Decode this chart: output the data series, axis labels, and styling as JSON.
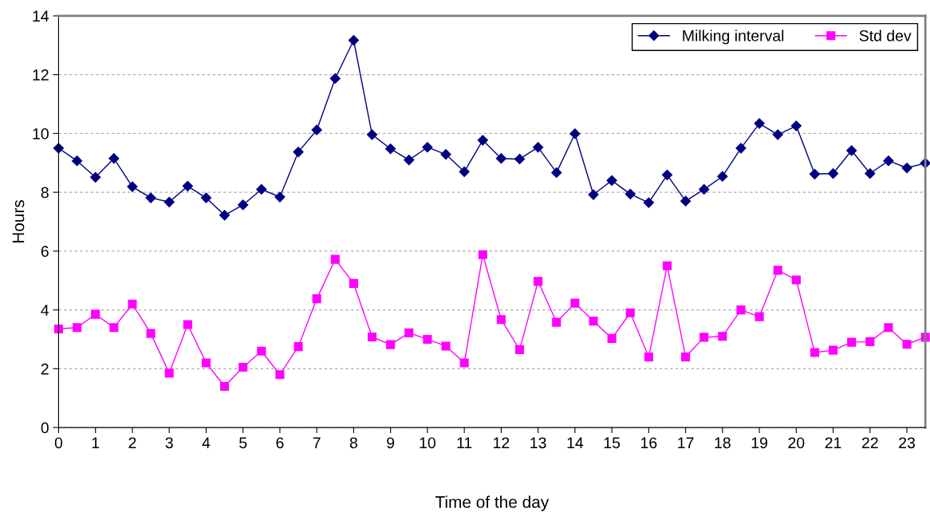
{
  "chart_data": {
    "type": "line",
    "xlabel": "Time of the day",
    "ylabel": "Hours",
    "x": [
      0,
      0.5,
      1,
      1.5,
      2,
      2.5,
      3,
      3.5,
      4,
      4.5,
      5,
      5.5,
      6,
      6.5,
      7,
      7.5,
      8,
      8.5,
      9,
      9.5,
      10,
      10.5,
      11,
      11.5,
      12,
      12.5,
      13,
      13.5,
      14,
      14.5,
      15,
      15.5,
      16,
      16.5,
      17,
      17.5,
      18,
      18.5,
      19,
      19.5,
      20,
      20.5,
      21,
      21.5,
      22,
      22.5,
      23,
      23.5
    ],
    "series": [
      {
        "name": "Milking interval",
        "color": "#000080",
        "marker": "diamond",
        "values": [
          9.5,
          9.07,
          8.51,
          9.15,
          8.19,
          7.81,
          7.67,
          8.21,
          7.81,
          7.22,
          7.57,
          8.1,
          7.84,
          9.37,
          10.12,
          11.87,
          13.17,
          9.96,
          9.48,
          9.1,
          9.53,
          9.29,
          8.7,
          9.77,
          9.15,
          9.13,
          9.53,
          8.67,
          9.99,
          7.92,
          8.4,
          7.94,
          7.65,
          8.59,
          7.7,
          8.1,
          8.54,
          9.5,
          10.34,
          9.96,
          10.26,
          8.62,
          8.64,
          9.42,
          8.64,
          9.07,
          8.83,
          8.99
        ]
      },
      {
        "name": "Std dev",
        "color": "#ff00ff",
        "marker": "square",
        "values": [
          3.35,
          3.4,
          3.85,
          3.4,
          4.2,
          3.2,
          1.85,
          3.5,
          2.2,
          1.4,
          2.05,
          2.6,
          1.8,
          2.75,
          4.38,
          5.72,
          4.9,
          3.08,
          2.82,
          3.22,
          3.0,
          2.77,
          2.2,
          5.88,
          3.67,
          2.65,
          4.97,
          3.58,
          4.23,
          3.62,
          3.03,
          3.9,
          2.4,
          5.5,
          2.4,
          3.07,
          3.1,
          4.0,
          3.77,
          5.35,
          5.02,
          2.55,
          2.63,
          2.9,
          2.92,
          3.4,
          2.83,
          3.07
        ]
      }
    ],
    "xlim": [
      0,
      23.5
    ],
    "xticks": [
      0,
      1,
      2,
      3,
      4,
      5,
      6,
      7,
      8,
      9,
      10,
      11,
      12,
      13,
      14,
      15,
      16,
      17,
      18,
      19,
      20,
      21,
      22,
      23
    ],
    "ylim": [
      0,
      14
    ],
    "yticks": [
      0,
      2,
      4,
      6,
      8,
      10,
      12,
      14
    ],
    "grid": "y",
    "legend": "top right",
    "line_style": "solid"
  }
}
